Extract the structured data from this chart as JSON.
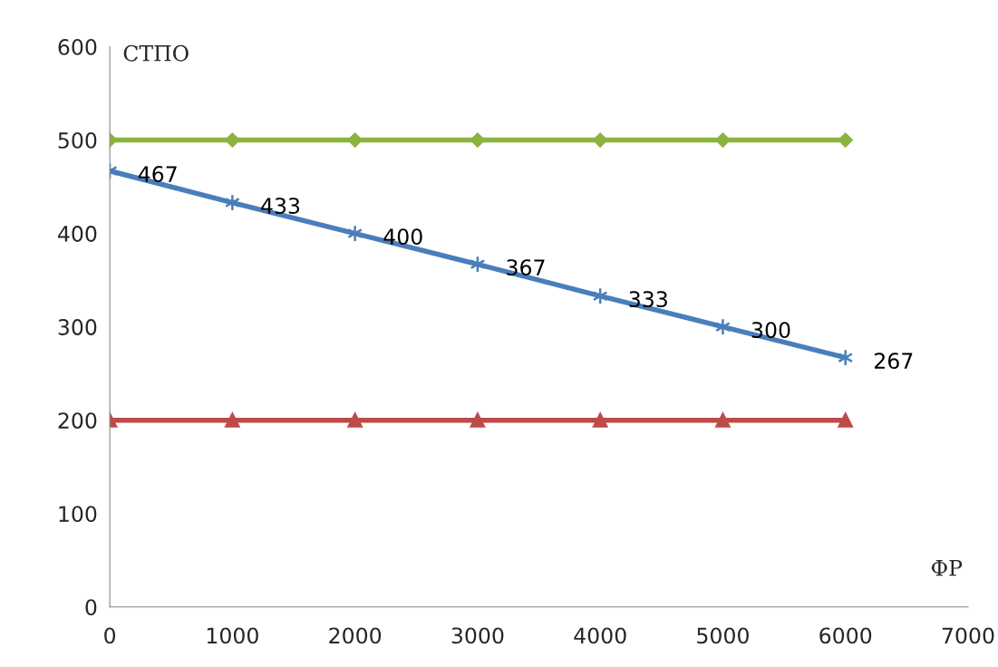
{
  "chart_data": {
    "type": "line",
    "xlabel": "ФР",
    "ylabel": "СТПО",
    "x": [
      0,
      1000,
      2000,
      3000,
      4000,
      5000,
      6000
    ],
    "series": [
      {
        "color": "#8db33f",
        "marker": "diamond",
        "values": [
          500,
          500,
          500,
          500,
          500,
          500,
          500
        ]
      },
      {
        "color": "#4a7ebb",
        "marker": "cross",
        "data_labels": true,
        "values": [
          467,
          433,
          400,
          367,
          333,
          300,
          267
        ]
      },
      {
        "color": "#be4b48",
        "marker": "triangle",
        "values": [
          200,
          200,
          200,
          200,
          200,
          200,
          200
        ]
      }
    ],
    "xlim": [
      0,
      7000
    ],
    "xticks": [
      0,
      1000,
      2000,
      3000,
      4000,
      5000,
      6000,
      7000
    ],
    "ylim": [
      0,
      600
    ],
    "yticks": [
      0,
      100,
      200,
      300,
      400,
      500,
      600
    ],
    "grid": false,
    "legend": false
  }
}
